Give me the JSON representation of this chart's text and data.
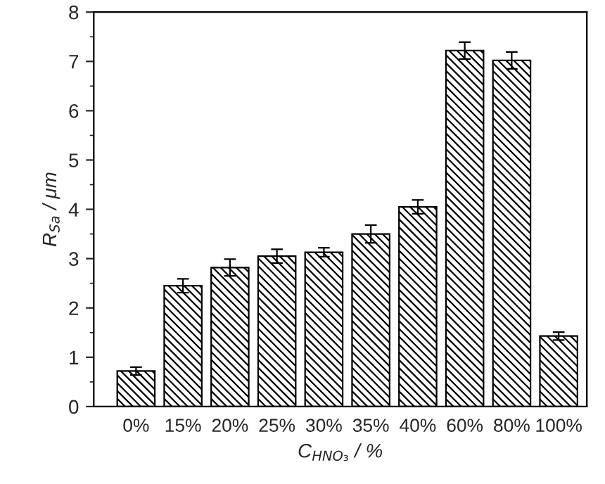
{
  "chart_data": {
    "type": "bar",
    "xlabel": "C$_{HNO₃}$ / %",
    "ylabel": "R$_{Sa}$ / μm",
    "categories": [
      "0%",
      "15%",
      "20%",
      "25%",
      "30%",
      "35%",
      "40%",
      "60%",
      "80%",
      "100%"
    ],
    "values": [
      0.72,
      2.45,
      2.82,
      3.05,
      3.13,
      3.5,
      4.05,
      7.22,
      7.02,
      1.43
    ],
    "errors": [
      0.08,
      0.14,
      0.17,
      0.14,
      0.09,
      0.18,
      0.14,
      0.17,
      0.17,
      0.08
    ],
    "color": "#000000",
    "ylim": [
      0,
      8
    ],
    "yticks": [
      0,
      1,
      2,
      3,
      4,
      5,
      6,
      7,
      8
    ],
    "grid": false,
    "legend": false
  }
}
